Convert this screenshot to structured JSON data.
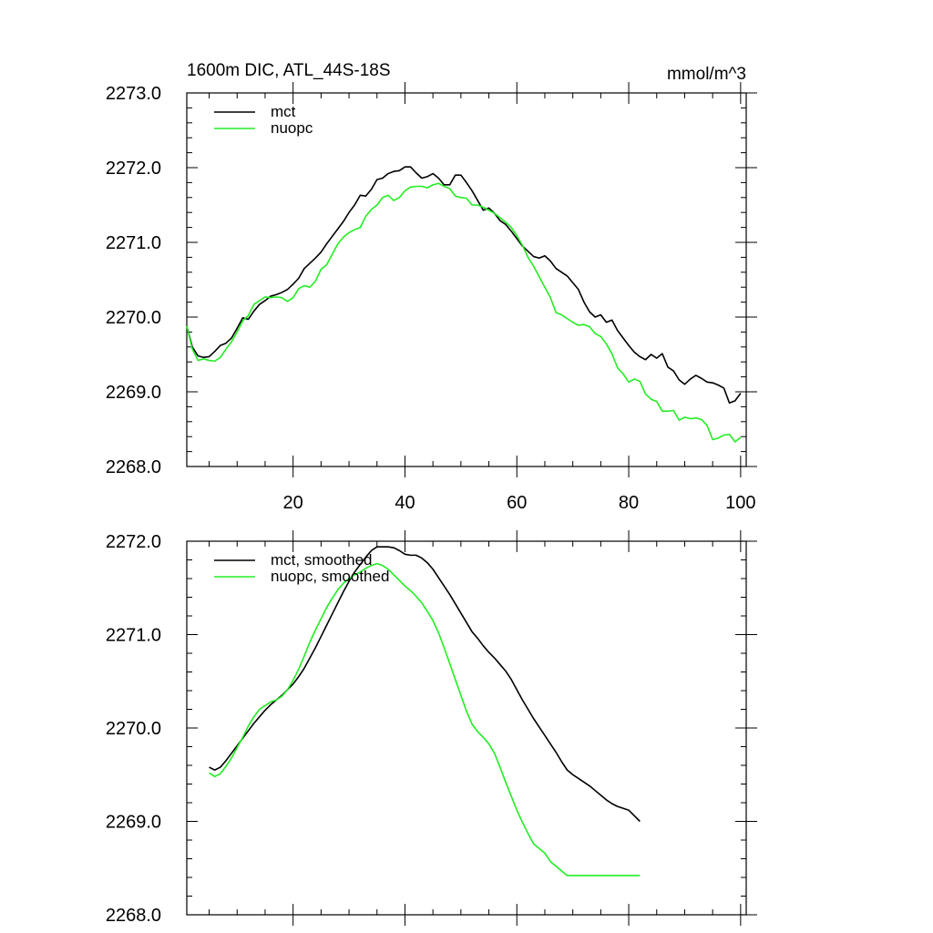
{
  "chart_data": [
    {
      "type": "line",
      "title": "1600m DIC, ATL_44S-18S",
      "units_label": "mmol/m^3",
      "xlim": [
        1,
        101
      ],
      "ylim": [
        2268.0,
        2273.0
      ],
      "x_ticks": [
        20,
        40,
        60,
        80,
        100
      ],
      "x_tick_labels": [
        "20",
        "40",
        "60",
        "80",
        "100"
      ],
      "y_ticks": [
        2268.0,
        2269.0,
        2270.0,
        2271.0,
        2272.0,
        2273.0
      ],
      "y_tick_labels": [
        "2268.0",
        "2269.0",
        "2270.0",
        "2271.0",
        "2272.0",
        "2273.0"
      ],
      "legend": "top-left",
      "series": [
        {
          "name": "mct",
          "color": "#000000",
          "x_start": 1,
          "x_step": 1,
          "values": [
            2269.88,
            2269.6,
            2269.48,
            2269.46,
            2269.47,
            2269.54,
            2269.62,
            2269.65,
            2269.72,
            2269.85,
            2269.99,
            2269.97,
            2270.08,
            2270.17,
            2270.22,
            2270.28,
            2270.3,
            2270.33,
            2270.37,
            2270.44,
            2270.52,
            2270.65,
            2270.72,
            2270.79,
            2270.87,
            2270.98,
            2271.08,
            2271.18,
            2271.28,
            2271.4,
            2271.5,
            2271.63,
            2271.62,
            2271.71,
            2271.84,
            2271.86,
            2271.92,
            2271.95,
            2271.96,
            2272.01,
            2272.01,
            2271.93,
            2271.86,
            2271.88,
            2271.92,
            2271.86,
            2271.77,
            2271.77,
            2271.9,
            2271.9,
            2271.8,
            2271.69,
            2271.56,
            2271.43,
            2271.46,
            2271.39,
            2271.29,
            2271.24,
            2271.15,
            2271.05,
            2270.95,
            2270.88,
            2270.81,
            2270.79,
            2270.82,
            2270.75,
            2270.65,
            2270.6,
            2270.55,
            2270.46,
            2270.37,
            2270.2,
            2270.07,
            2270.0,
            2270.03,
            2269.93,
            2269.96,
            2269.82,
            2269.72,
            2269.62,
            2269.53,
            2269.47,
            2269.43,
            2269.5,
            2269.45,
            2269.51,
            2269.33,
            2269.28,
            2269.16,
            2269.1,
            2269.17,
            2269.22,
            2269.18,
            2269.13,
            2269.12,
            2269.09,
            2269.05,
            2268.85,
            2268.88,
            2268.98
          ]
        },
        {
          "name": "nuopc",
          "color": "#22ee22",
          "x_start": 1,
          "x_step": 1,
          "values": [
            2269.88,
            2269.57,
            2269.42,
            2269.44,
            2269.42,
            2269.41,
            2269.46,
            2269.57,
            2269.67,
            2269.8,
            2269.95,
            2270.02,
            2270.17,
            2270.22,
            2270.27,
            2270.26,
            2270.27,
            2270.26,
            2270.21,
            2270.26,
            2270.38,
            2270.42,
            2270.4,
            2270.48,
            2270.64,
            2270.7,
            2270.84,
            2270.98,
            2271.07,
            2271.13,
            2271.17,
            2271.2,
            2271.35,
            2271.44,
            2271.5,
            2271.6,
            2271.63,
            2271.56,
            2271.6,
            2271.69,
            2271.74,
            2271.75,
            2271.75,
            2271.73,
            2271.77,
            2271.79,
            2271.75,
            2271.72,
            2271.62,
            2271.6,
            2271.59,
            2271.5,
            2271.5,
            2271.47,
            2271.43,
            2271.39,
            2271.33,
            2271.27,
            2271.2,
            2271.09,
            2270.96,
            2270.8,
            2270.68,
            2270.54,
            2270.4,
            2270.26,
            2270.06,
            2270.03,
            2269.98,
            2269.93,
            2269.89,
            2269.9,
            2269.87,
            2269.78,
            2269.74,
            2269.64,
            2269.51,
            2269.32,
            2269.24,
            2269.13,
            2269.17,
            2269.14,
            2268.97,
            2268.9,
            2268.87,
            2268.74,
            2268.74,
            2268.75,
            2268.62,
            2268.66,
            2268.64,
            2268.65,
            2268.63,
            2268.55,
            2268.36,
            2268.38,
            2268.42,
            2268.43,
            2268.33,
            2268.39
          ]
        }
      ]
    },
    {
      "type": "line",
      "xlim": [
        1,
        101
      ],
      "ylim": [
        2268.0,
        2272.0
      ],
      "x_ticks": [
        20,
        40,
        60,
        80,
        100
      ],
      "y_ticks": [
        2268.0,
        2269.0,
        2270.0,
        2271.0,
        2272.0
      ],
      "y_tick_labels": [
        "2268.0",
        "2269.0",
        "2270.0",
        "2271.0",
        "2272.0"
      ],
      "legend": "top-left",
      "series": [
        {
          "name": "mct, smoothed",
          "color": "#000000",
          "x_start": 5,
          "x_step": 1,
          "values": [
            2269.58,
            2269.55,
            2269.58,
            2269.65,
            2269.73,
            2269.81,
            2269.89,
            2269.97,
            2270.05,
            2270.12,
            2270.19,
            2270.25,
            2270.3,
            2270.35,
            2270.41,
            2270.47,
            2270.55,
            2270.64,
            2270.75,
            2270.86,
            2270.98,
            2271.1,
            2271.22,
            2271.34,
            2271.46,
            2271.57,
            2271.67,
            2271.75,
            2271.83,
            2271.9,
            2271.94,
            2271.94,
            2271.94,
            2271.93,
            2271.9,
            2271.86,
            2271.85,
            2271.85,
            2271.82,
            2271.77,
            2271.7,
            2271.61,
            2271.52,
            2271.43,
            2271.33,
            2271.23,
            2271.13,
            2271.03,
            2270.96,
            2270.88,
            2270.81,
            2270.75,
            2270.68,
            2270.61,
            2270.52,
            2270.41,
            2270.3,
            2270.2,
            2270.1,
            2270.01,
            2269.92,
            2269.83,
            2269.74,
            2269.64,
            2269.55,
            2269.5,
            2269.46,
            2269.42,
            2269.38,
            2269.33,
            2269.28,
            2269.23,
            2269.19,
            2269.16,
            2269.14,
            2269.12,
            2269.06,
            2269.0
          ]
        },
        {
          "name": "nuopc, smoothed",
          "color": "#22ee22",
          "x_start": 5,
          "x_step": 1,
          "values": [
            2269.52,
            2269.48,
            2269.51,
            2269.59,
            2269.68,
            2269.79,
            2269.9,
            2270.02,
            2270.12,
            2270.2,
            2270.24,
            2270.28,
            2270.3,
            2270.34,
            2270.41,
            2270.51,
            2270.63,
            2270.77,
            2270.92,
            2271.05,
            2271.17,
            2271.29,
            2271.39,
            2271.48,
            2271.55,
            2271.6,
            2271.64,
            2271.67,
            2271.71,
            2271.74,
            2271.76,
            2271.74,
            2271.7,
            2271.64,
            2271.58,
            2271.52,
            2271.47,
            2271.41,
            2271.34,
            2271.25,
            2271.15,
            2271.02,
            2270.86,
            2270.69,
            2270.52,
            2270.35,
            2270.18,
            2270.04,
            2269.96,
            2269.9,
            2269.83,
            2269.73,
            2269.58,
            2269.42,
            2269.27,
            2269.12,
            2268.99,
            2268.87,
            2268.76,
            2268.71,
            2268.66,
            2268.57,
            2268.52,
            2268.47,
            2268.42,
            2268.42,
            2268.42,
            2268.42,
            2268.42,
            2268.42,
            2268.42,
            2268.42,
            2268.42,
            2268.42,
            2268.42,
            2268.42,
            2268.42,
            2268.42
          ]
        }
      ]
    }
  ]
}
